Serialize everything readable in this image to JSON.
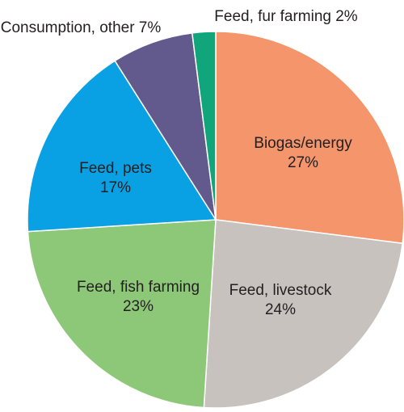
{
  "chart_data": {
    "type": "pie",
    "slices": [
      {
        "label": "Biogas/energy",
        "value": 27,
        "value_label": "27%",
        "color": "#f4956b"
      },
      {
        "label": "Feed, livestock",
        "value": 24,
        "value_label": "24%",
        "color": "#c8c2bf"
      },
      {
        "label": "Feed, fish farming",
        "value": 23,
        "value_label": "23%",
        "color": "#8dc878"
      },
      {
        "label": "Feed, pets",
        "value": 17,
        "value_label": "17%",
        "color": "#0aa0e4"
      },
      {
        "label": "Consumption, other",
        "value": 7,
        "value_label": "7%",
        "color": "#625a8c"
      },
      {
        "label": "Feed, fur farming",
        "value": 2,
        "value_label": "2%",
        "color": "#10a57b"
      }
    ],
    "start_angle_deg": 0,
    "direction": "clockwise",
    "slice_border_color": "#ffffff",
    "legend": "none",
    "title": ""
  }
}
